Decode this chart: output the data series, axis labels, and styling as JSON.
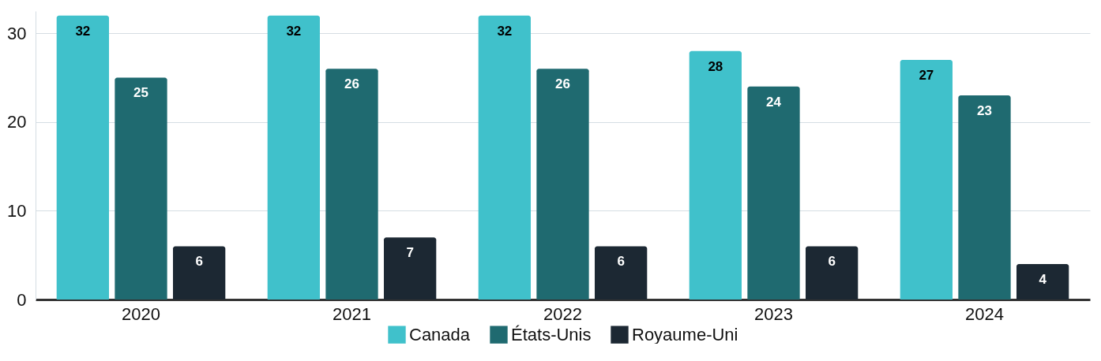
{
  "chart_data": {
    "type": "bar",
    "categories": [
      "2020",
      "2021",
      "2022",
      "2023",
      "2024"
    ],
    "series": [
      {
        "name": "Canada",
        "color": "#40c1cb",
        "values": [
          32,
          32,
          32,
          28,
          27
        ]
      },
      {
        "name": "États-Unis",
        "color": "#1f6a70",
        "values": [
          25,
          26,
          26,
          24,
          23
        ]
      },
      {
        "name": "Royaume-Uni",
        "color": "#1c2833",
        "values": [
          6,
          7,
          6,
          6,
          4
        ]
      }
    ],
    "ylim": [
      0,
      32.5
    ],
    "yticks": [
      0,
      10,
      20,
      30
    ],
    "grid": "y",
    "legend": "bottom",
    "data_labels": true
  }
}
